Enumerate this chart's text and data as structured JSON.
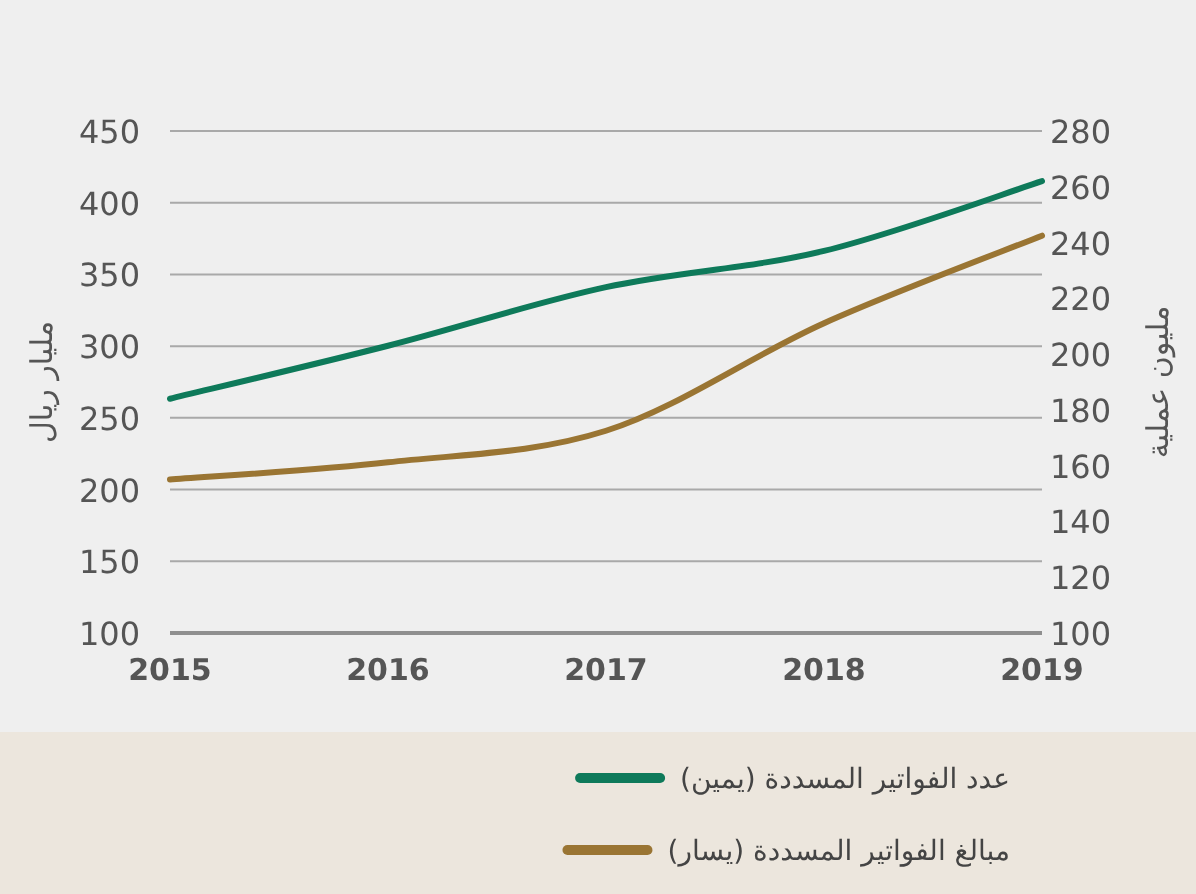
{
  "chart_data": {
    "type": "line",
    "categories": [
      "2015",
      "2016",
      "2017",
      "2018",
      "2019"
    ],
    "ylabel": "مليار ريال",
    "y2label": "مليون عملية",
    "ylim": [
      100,
      450
    ],
    "yticks": [
      100,
      150,
      200,
      250,
      300,
      350,
      400,
      450
    ],
    "y2lim": [
      100,
      280
    ],
    "y2ticks": [
      100,
      120,
      140,
      160,
      180,
      200,
      220,
      240,
      260,
      280
    ],
    "grid": "y",
    "legend": "bottom",
    "series": [
      {
        "name": "عدد الفواتير المسددة (يمين)",
        "color": "#0e7a5a",
        "axis": "y2",
        "values": [
          184,
          203,
          224,
          237,
          262
        ]
      },
      {
        "name": "مبالغ الفواتير المسددة (يسار)",
        "color": "#9a7533",
        "values": [
          207,
          219,
          241,
          316,
          377
        ]
      }
    ]
  }
}
